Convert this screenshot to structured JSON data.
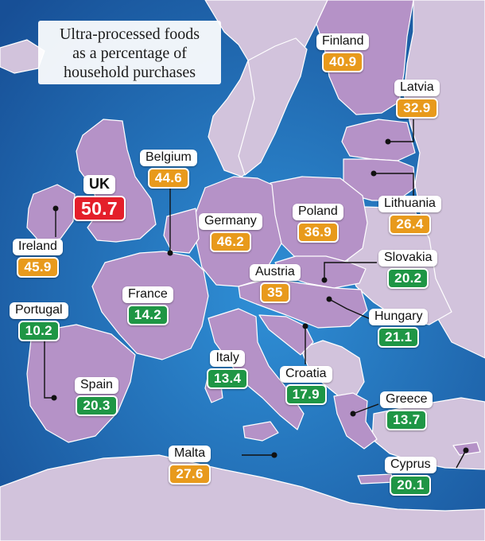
{
  "title": {
    "line1": "Ultra-processed foods",
    "line2": "as a percentage of",
    "line3": "household purchases"
  },
  "colors": {
    "sea": "#1e6fb8",
    "study_country": "#b592c7",
    "other_land": "#d2c3dc",
    "border": "#ffffff",
    "high": "#e89a1c",
    "low": "#1f9645",
    "highest": "#e41f2a"
  },
  "countries": {
    "uk": {
      "name": "UK",
      "value": "50.7",
      "level": "highest"
    },
    "finland": {
      "name": "Finland",
      "value": "40.9",
      "level": "high"
    },
    "latvia": {
      "name": "Latvia",
      "value": "32.9",
      "level": "high"
    },
    "belgium": {
      "name": "Belgium",
      "value": "44.6",
      "level": "high"
    },
    "germany": {
      "name": "Germany",
      "value": "46.2",
      "level": "high"
    },
    "poland": {
      "name": "Poland",
      "value": "36.9",
      "level": "high"
    },
    "lithuania": {
      "name": "Lithuania",
      "value": "26.4",
      "level": "high"
    },
    "ireland": {
      "name": "Ireland",
      "value": "45.9",
      "level": "high"
    },
    "austria": {
      "name": "Austria",
      "value": "35",
      "level": "high"
    },
    "slovakia": {
      "name": "Slovakia",
      "value": "20.2",
      "level": "low"
    },
    "france": {
      "name": "France",
      "value": "14.2",
      "level": "low"
    },
    "portugal": {
      "name": "Portugal",
      "value": "10.2",
      "level": "low"
    },
    "hungary": {
      "name": "Hungary",
      "value": "21.1",
      "level": "low"
    },
    "italy": {
      "name": "Italy",
      "value": "13.4",
      "level": "low"
    },
    "croatia": {
      "name": "Croatia",
      "value": "17.9",
      "level": "low"
    },
    "spain": {
      "name": "Spain",
      "value": "20.3",
      "level": "low"
    },
    "greece": {
      "name": "Greece",
      "value": "13.7",
      "level": "low"
    },
    "malta": {
      "name": "Malta",
      "value": "27.6",
      "level": "high"
    },
    "cyprus": {
      "name": "Cyprus",
      "value": "20.1",
      "level": "low"
    }
  }
}
